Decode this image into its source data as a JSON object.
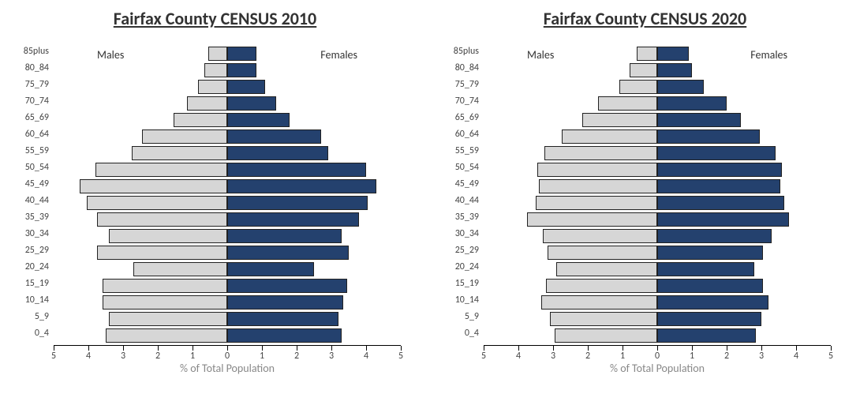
{
  "background_color": "#ffffff",
  "male_color": "#d6d6d6",
  "female_color": "#24416e",
  "bar_border_color": "#222222",
  "title_fontsize": 22,
  "label_fontsize": 12,
  "side_label_fontsize": 14,
  "xtitle_fontsize": 14,
  "xtitle_color": "#888888",
  "panels": [
    {
      "title": "Fairfax County CENSUS 2010",
      "males_label": "Males",
      "females_label": "Females",
      "x_title": "% of Total Population",
      "xlim": 5,
      "xticks": [
        5,
        4,
        3,
        2,
        1,
        0,
        1,
        2,
        3,
        4,
        5
      ],
      "age_groups": [
        "85plus",
        "80_84",
        "75_79",
        "70_74",
        "65_69",
        "60_64",
        "55_59",
        "50_54",
        "45_49",
        "40_44",
        "35_39",
        "30_34",
        "25_29",
        "20_24",
        "15_19",
        "10_14",
        "5_9",
        "0_4"
      ],
      "males": [
        0.55,
        0.65,
        0.85,
        1.15,
        1.55,
        2.45,
        2.75,
        3.8,
        4.25,
        4.05,
        3.75,
        3.4,
        3.75,
        2.7,
        3.6,
        3.6,
        3.4,
        3.5
      ],
      "females": [
        0.85,
        0.85,
        1.1,
        1.4,
        1.8,
        2.7,
        2.9,
        4.0,
        4.3,
        4.05,
        3.8,
        3.3,
        3.5,
        2.5,
        3.45,
        3.35,
        3.2,
        3.3
      ]
    },
    {
      "title": "Fairfax County CENSUS 2020",
      "males_label": "Males",
      "females_label": "Females",
      "x_title": "% of Total Population",
      "xlim": 5,
      "xticks": [
        5,
        4,
        3,
        2,
        1,
        0,
        1,
        2,
        3,
        4,
        5
      ],
      "age_groups": [
        "85plus",
        "80_84",
        "75_79",
        "70_74",
        "65_69",
        "60_64",
        "55_59",
        "50_54",
        "45_49",
        "40_44",
        "35_39",
        "30_34",
        "25_29",
        "20_24",
        "15_19",
        "10_14",
        "5_9",
        "0_4"
      ],
      "males": [
        0.6,
        0.8,
        1.1,
        1.7,
        2.15,
        2.75,
        3.25,
        3.45,
        3.4,
        3.5,
        3.75,
        3.3,
        3.15,
        2.9,
        3.2,
        3.35,
        3.1,
        2.95
      ],
      "females": [
        0.9,
        1.0,
        1.35,
        2.0,
        2.4,
        2.95,
        3.4,
        3.6,
        3.55,
        3.65,
        3.8,
        3.3,
        3.05,
        2.8,
        3.05,
        3.2,
        3.0,
        2.85
      ]
    }
  ]
}
